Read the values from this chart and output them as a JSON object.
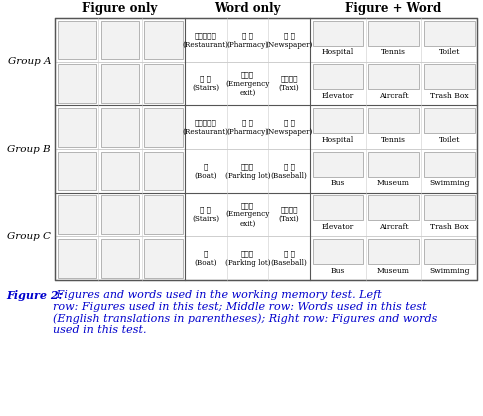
{
  "title_col1": "Figure only",
  "title_col2": "Word only",
  "title_col3": "Figure + Word",
  "group_labels": [
    "Group A",
    "Group B",
    "Group C"
  ],
  "figure_caption_bold": "Figure 2:",
  "figure_caption_rest": " Figures and words used in the working memory test. Left\nrow: Figures used in this test; Middle row: Words used in this test\n(English translations in parentheses); Right row: Figures and words\nused in this test.",
  "bg_color": "#ffffff",
  "text_color": "#000000",
  "caption_color": "#0000cc",
  "word_cells": {
    "groupA_row1": [
      "レストラン\n(Restaurant)",
      "薬 局\n(Pharmacy)",
      "新 職\n(Newspaper)"
    ],
    "groupA_row2": [
      "階 段\n(Stairs)",
      "非常口\n(Emergency\nexit)",
      "タクシー\n(Taxi)"
    ],
    "groupB_row1": [
      "レストラン\n(Restaurant)",
      "薬 局\n(Pharmacy)",
      "新 職\n(Newspaper)"
    ],
    "groupB_row2": [
      "船\n(Boat)",
      "駐車場\n(Parking lot)",
      "野 球\n(Baseball)"
    ],
    "groupC_row1": [
      "階 段\n(Stairs)",
      "非常口\n(Emergency\nexit)",
      "タクシー\n(Taxi)"
    ],
    "groupC_row2": [
      "船\n(Boat)",
      "駐車場\n(Parking lot)",
      "野 球\n(Baseball)"
    ]
  },
  "fw_cells": {
    "groupA_row1": [
      "Hospital",
      "Tennis",
      "Toilet"
    ],
    "groupA_row2": [
      "Elevator",
      "Aircraft",
      "Trash Box"
    ],
    "groupB_row1": [
      "Hospital",
      "Tennis",
      "Toilet"
    ],
    "groupB_row2": [
      "Bus",
      "Museum",
      "Swimming"
    ],
    "groupC_row1": [
      "Elevator",
      "Aircraft",
      "Trash Box"
    ],
    "groupC_row2": [
      "Bus",
      "Museum",
      "Swimming"
    ]
  }
}
